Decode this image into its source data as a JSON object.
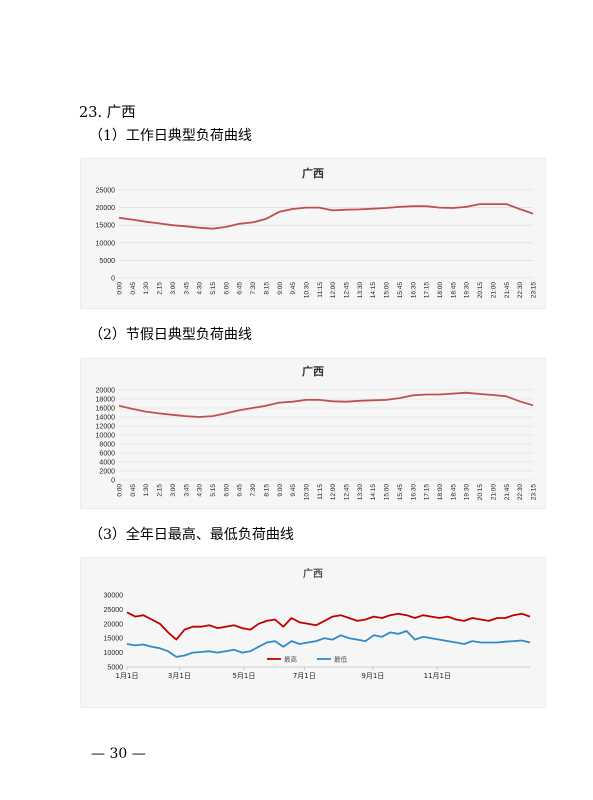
{
  "headings": {
    "section": "23. 广西",
    "sub1": "（1）工作日典型负荷曲线",
    "sub2": "（2）节假日典型负荷曲线",
    "sub3": "（3）全年日最高、最低负荷曲线"
  },
  "footer": {
    "page": "— 30 —"
  },
  "colors": {
    "load": "#c0504d",
    "max": "#c00000",
    "min": "#2e8bc6",
    "panel_bg": "#f6f6f6"
  },
  "time_labels": [
    "0:00",
    "0:45",
    "1:30",
    "2:15",
    "3:00",
    "3:45",
    "4:30",
    "5:15",
    "6:00",
    "6:45",
    "7:30",
    "8:15",
    "9:00",
    "9:45",
    "10:30",
    "11:15",
    "12:00",
    "12:45",
    "13:30",
    "14:15",
    "15:00",
    "15:45",
    "16:30",
    "17:15",
    "18:00",
    "18:45",
    "19:30",
    "20:15",
    "21:00",
    "21:45",
    "22:30",
    "23:15"
  ],
  "chart_data": [
    {
      "type": "line",
      "title": "广西",
      "xlabel": "",
      "ylabel": "",
      "ylim": [
        0,
        25000
      ],
      "yticks": [
        0,
        5000,
        10000,
        15000,
        20000,
        25000
      ],
      "grid": true,
      "series": [
        {
          "values": [
            17100,
            16600,
            16000,
            15500,
            15000,
            14700,
            14300,
            14000,
            14500,
            15400,
            15800,
            16800,
            18800,
            19600,
            20000,
            20000,
            19200,
            19400,
            19500,
            19700,
            19900,
            20200,
            20400,
            20400,
            20000,
            19900,
            20200,
            21000,
            21000,
            21000,
            19600,
            18300
          ]
        }
      ]
    },
    {
      "type": "line",
      "title": "广西",
      "xlabel": "",
      "ylabel": "",
      "ylim": [
        0,
        20000
      ],
      "yticks": [
        0,
        2000,
        4000,
        6000,
        8000,
        10000,
        12000,
        14000,
        16000,
        18000,
        20000
      ],
      "grid": true,
      "series": [
        {
          "values": [
            16500,
            15800,
            15200,
            14800,
            14500,
            14200,
            14000,
            14200,
            14800,
            15500,
            16000,
            16500,
            17200,
            17400,
            17800,
            17800,
            17500,
            17400,
            17600,
            17700,
            17800,
            18200,
            18800,
            19000,
            19000,
            19200,
            19400,
            19100,
            18900,
            18600,
            17500,
            16600
          ]
        }
      ]
    },
    {
      "type": "line",
      "title": "广西",
      "xlabel": "",
      "ylabel": "",
      "ylim": [
        5000,
        30000
      ],
      "yticks": [
        5000,
        10000,
        15000,
        20000,
        25000,
        30000
      ],
      "x_tick_labels": [
        "1月1日",
        "3月1日",
        "5月1日",
        "7月1日",
        "9月1日",
        "11月1日"
      ],
      "legend": "bottom",
      "grid": false,
      "series": [
        {
          "name": "最高",
          "values": [
            24000,
            22500,
            23000,
            21500,
            20000,
            17000,
            14500,
            18000,
            19000,
            19000,
            19500,
            18500,
            19000,
            19500,
            18500,
            18000,
            20000,
            21000,
            21500,
            19000,
            22000,
            20500,
            20000,
            19500,
            21000,
            22500,
            23000,
            22000,
            21000,
            21500,
            22500,
            22000,
            23000,
            23500,
            23000,
            22000,
            23000,
            22500,
            22000,
            22500,
            21500,
            21000,
            22000,
            21500,
            21000,
            22000,
            22000,
            23000,
            23500,
            22500
          ]
        },
        {
          "name": "最低",
          "values": [
            13000,
            12500,
            12800,
            12000,
            11500,
            10500,
            8500,
            9000,
            10000,
            10200,
            10500,
            10000,
            10500,
            11000,
            10000,
            10500,
            12000,
            13500,
            14000,
            12000,
            14000,
            13000,
            13500,
            14000,
            15000,
            14500,
            16000,
            15000,
            14500,
            14000,
            16000,
            15500,
            17000,
            16500,
            17500,
            14500,
            15500,
            15000,
            14500,
            14000,
            13500,
            13000,
            14000,
            13500,
            13500,
            13500,
            13800,
            14000,
            14200,
            13500
          ]
        }
      ]
    }
  ]
}
